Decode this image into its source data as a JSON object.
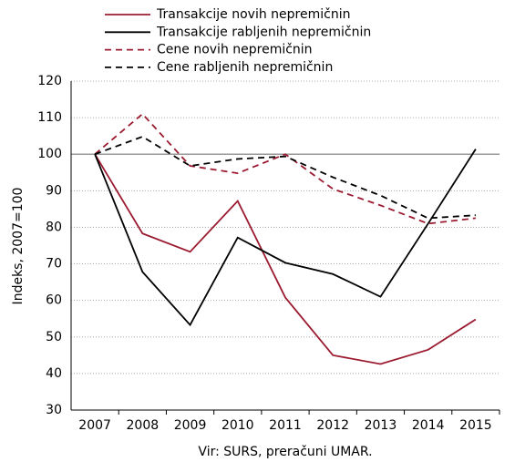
{
  "chart_data": {
    "type": "line",
    "x_label": "",
    "y_label": "Indeks,  2007=100",
    "source": "Vir: SURS, preračuni UMAR.",
    "categories": [
      "2007",
      "2008",
      "2009",
      "2010",
      "2011",
      "2012",
      "2013",
      "2014",
      "2015"
    ],
    "series": [
      {
        "name": "Transakcije novih nepremičnin",
        "color": "#9b1b30",
        "dashed": false,
        "values": [
          100,
          78.3,
          73.3,
          87.2,
          60.8,
          45,
          42.6,
          46.5,
          54.8
        ]
      },
      {
        "name": "Transakcije rabljenih nepremičnin",
        "color": "#000000",
        "dashed": false,
        "values": [
          100,
          67.8,
          53.3,
          77.2,
          70.3,
          67.2,
          61,
          81,
          101.4
        ]
      },
      {
        "name": "Cene novih nepremičnin",
        "color": "#9b1b30",
        "dashed": true,
        "values": [
          100,
          111,
          96.8,
          94.8,
          100,
          90.5,
          86,
          81,
          82.5
        ]
      },
      {
        "name": "Cene rabljenih nepremičnin",
        "color": "#000000",
        "dashed": true,
        "values": [
          100,
          104.8,
          96.8,
          98.7,
          99.4,
          93.7,
          88.7,
          82.5,
          83.3
        ]
      }
    ],
    "ylim": [
      30,
      120
    ],
    "yticks": [
      30,
      40,
      50,
      60,
      70,
      80,
      90,
      100,
      110,
      120
    ],
    "grid": true,
    "reference_line": 100,
    "legend": "top"
  }
}
